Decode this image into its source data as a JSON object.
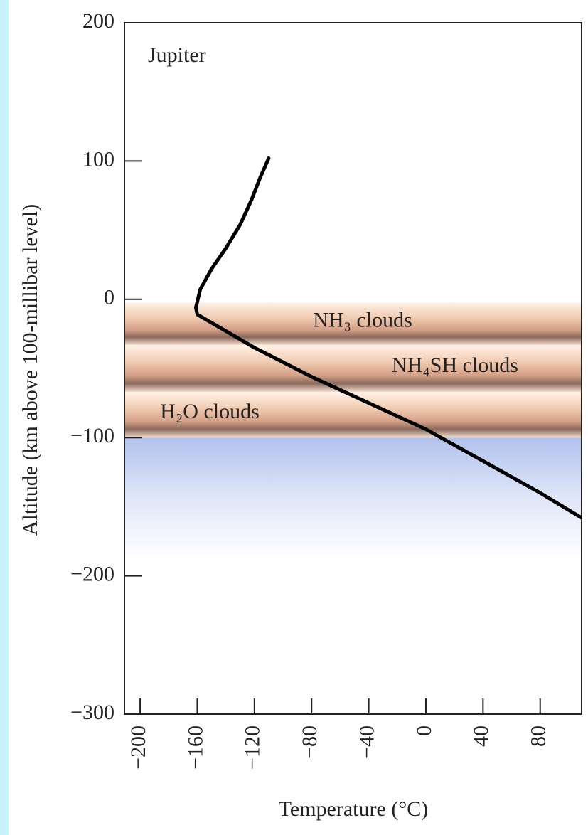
{
  "chart_data": {
    "type": "line",
    "annotation": "Jupiter",
    "xlabel": "Temperature (°C)",
    "ylabel": "Altitude (km above 100-millibar level)",
    "x": [
      -110,
      -116,
      -122,
      -130,
      -140,
      -150,
      -158,
      -161,
      -160,
      -150,
      -120,
      -80,
      -40,
      0,
      40,
      80,
      109
    ],
    "series": [
      {
        "name": "Temperature profile",
        "color": "#000000",
        "values": [
          102,
          88,
          72,
          54,
          37,
          22,
          7,
          -6,
          -11,
          -17,
          -35,
          -56,
          -75,
          -94,
          -117,
          -140,
          -158
        ]
      }
    ],
    "clouds": [
      {
        "label": "NH₃ clouds",
        "range": [
          -2,
          -33
        ]
      },
      {
        "label": "NH₄SH clouds",
        "range": [
          -33,
          -67
        ]
      },
      {
        "label": "H₂O clouds",
        "range": [
          -67,
          -100
        ]
      }
    ],
    "xlim": [
      -211,
      109
    ],
    "ylim": [
      -300,
      200
    ],
    "xticks": [
      {
        "value": -200,
        "label": "−200"
      },
      {
        "value": -160,
        "label": "−160"
      },
      {
        "value": -120,
        "label": "−120"
      },
      {
        "value": -80,
        "label": "−80"
      },
      {
        "value": -40,
        "label": "−40"
      },
      0,
      40,
      80
    ],
    "yticks": [
      200,
      100,
      0,
      {
        "value": -100,
        "label": "−100"
      },
      {
        "value": -200,
        "label": "−200"
      },
      {
        "value": -300,
        "label": "−300"
      }
    ]
  }
}
